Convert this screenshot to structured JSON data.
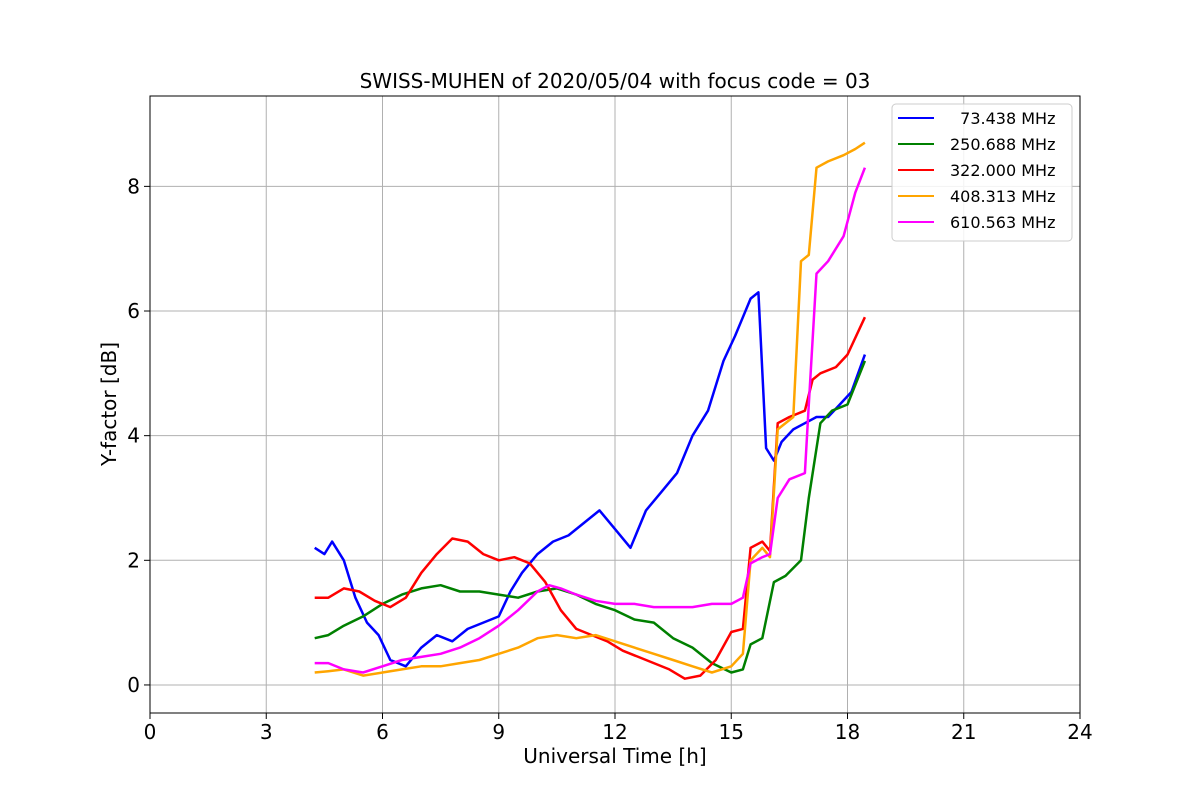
{
  "chart_data": {
    "type": "line",
    "title": "SWISS-MUHEN of 2020/05/04 with focus code = 03",
    "xlabel": "Universal Time [h]",
    "ylabel": "Y-factor [dB]",
    "xlim": [
      0,
      24
    ],
    "ylim": [
      -0.45,
      9.45
    ],
    "xticks": [
      0,
      3,
      6,
      9,
      12,
      15,
      18,
      21,
      24
    ],
    "yticks": [
      0,
      2,
      4,
      6,
      8
    ],
    "grid": true,
    "legend_position": "top-right",
    "series": [
      {
        "name": "  73.438 MHz",
        "color": "#0000ff",
        "x": [
          4.25,
          4.5,
          4.7,
          5.0,
          5.3,
          5.6,
          5.9,
          6.2,
          6.6,
          7.0,
          7.4,
          7.8,
          8.2,
          8.6,
          9.0,
          9.3,
          9.6,
          10.0,
          10.4,
          10.8,
          11.2,
          11.6,
          12.0,
          12.4,
          12.8,
          13.2,
          13.6,
          14.0,
          14.4,
          14.8,
          15.1,
          15.3,
          15.5,
          15.7,
          15.9,
          16.1,
          16.3,
          16.6,
          16.9,
          17.2,
          17.5,
          17.8,
          18.1,
          18.45
        ],
        "y": [
          2.2,
          2.1,
          2.3,
          2.0,
          1.4,
          1.0,
          0.8,
          0.4,
          0.3,
          0.6,
          0.8,
          0.7,
          0.9,
          1.0,
          1.1,
          1.5,
          1.8,
          2.1,
          2.3,
          2.4,
          2.6,
          2.8,
          2.5,
          2.2,
          2.8,
          3.1,
          3.4,
          4.0,
          4.4,
          5.2,
          5.6,
          5.9,
          6.2,
          6.3,
          3.8,
          3.6,
          3.9,
          4.1,
          4.2,
          4.3,
          4.3,
          4.5,
          4.7,
          5.3
        ]
      },
      {
        "name": "250.688 MHz",
        "color": "#008000",
        "x": [
          4.25,
          4.6,
          5.0,
          5.5,
          6.0,
          6.5,
          7.0,
          7.5,
          8.0,
          8.5,
          9.0,
          9.5,
          10.0,
          10.5,
          11.0,
          11.5,
          12.0,
          12.5,
          13.0,
          13.5,
          14.0,
          14.5,
          15.0,
          15.3,
          15.5,
          15.8,
          16.1,
          16.4,
          16.8,
          17.0,
          17.3,
          17.6,
          18.0,
          18.45
        ],
        "y": [
          0.75,
          0.8,
          0.95,
          1.1,
          1.3,
          1.45,
          1.55,
          1.6,
          1.5,
          1.5,
          1.45,
          1.4,
          1.5,
          1.55,
          1.45,
          1.3,
          1.2,
          1.05,
          1.0,
          0.75,
          0.6,
          0.35,
          0.2,
          0.25,
          0.65,
          0.75,
          1.65,
          1.75,
          2.0,
          3.0,
          4.2,
          4.4,
          4.5,
          5.2
        ]
      },
      {
        "name": "322.000 MHz",
        "color": "#ff0000",
        "x": [
          4.25,
          4.6,
          5.0,
          5.4,
          5.8,
          6.2,
          6.6,
          7.0,
          7.4,
          7.8,
          8.2,
          8.6,
          9.0,
          9.4,
          9.8,
          10.2,
          10.6,
          11.0,
          11.4,
          11.8,
          12.2,
          12.6,
          13.0,
          13.4,
          13.8,
          14.2,
          14.6,
          15.0,
          15.3,
          15.5,
          15.8,
          16.0,
          16.2,
          16.5,
          16.9,
          17.1,
          17.3,
          17.7,
          18.0,
          18.45
        ],
        "y": [
          1.4,
          1.4,
          1.55,
          1.5,
          1.35,
          1.25,
          1.4,
          1.8,
          2.1,
          2.35,
          2.3,
          2.1,
          2.0,
          2.05,
          1.95,
          1.65,
          1.2,
          0.9,
          0.8,
          0.7,
          0.55,
          0.45,
          0.35,
          0.25,
          0.1,
          0.15,
          0.4,
          0.85,
          0.9,
          2.2,
          2.3,
          2.15,
          4.2,
          4.3,
          4.4,
          4.9,
          5.0,
          5.1,
          5.3,
          5.9
        ]
      },
      {
        "name": "408.313 MHz",
        "color": "#ffa500",
        "x": [
          4.25,
          4.6,
          5.0,
          5.5,
          6.0,
          6.5,
          7.0,
          7.5,
          8.0,
          8.5,
          9.0,
          9.5,
          10.0,
          10.5,
          11.0,
          11.5,
          12.0,
          12.5,
          13.0,
          13.5,
          14.0,
          14.5,
          15.0,
          15.3,
          15.5,
          15.8,
          16.0,
          16.2,
          16.6,
          16.8,
          17.0,
          17.2,
          17.5,
          17.9,
          18.2,
          18.45
        ],
        "y": [
          0.2,
          0.22,
          0.25,
          0.15,
          0.2,
          0.25,
          0.3,
          0.3,
          0.35,
          0.4,
          0.5,
          0.6,
          0.75,
          0.8,
          0.75,
          0.8,
          0.7,
          0.6,
          0.5,
          0.4,
          0.3,
          0.2,
          0.3,
          0.5,
          2.0,
          2.2,
          2.05,
          4.1,
          4.3,
          6.8,
          6.9,
          8.3,
          8.4,
          8.5,
          8.6,
          8.7
        ]
      },
      {
        "name": "610.563 MHz",
        "color": "#ff00ff",
        "x": [
          4.25,
          4.6,
          5.0,
          5.5,
          6.0,
          6.5,
          7.0,
          7.5,
          8.0,
          8.5,
          9.0,
          9.5,
          10.0,
          10.3,
          10.6,
          11.0,
          11.5,
          12.0,
          12.5,
          13.0,
          13.5,
          14.0,
          14.5,
          15.0,
          15.3,
          15.5,
          15.8,
          16.0,
          16.2,
          16.5,
          16.9,
          17.0,
          17.2,
          17.5,
          17.9,
          18.2,
          18.45
        ],
        "y": [
          0.35,
          0.35,
          0.25,
          0.2,
          0.3,
          0.4,
          0.45,
          0.5,
          0.6,
          0.75,
          0.95,
          1.2,
          1.5,
          1.6,
          1.55,
          1.45,
          1.35,
          1.3,
          1.3,
          1.25,
          1.25,
          1.25,
          1.3,
          1.3,
          1.4,
          1.95,
          2.05,
          2.1,
          3.0,
          3.3,
          3.4,
          4.5,
          6.6,
          6.8,
          7.2,
          7.9,
          8.3
        ]
      }
    ]
  }
}
